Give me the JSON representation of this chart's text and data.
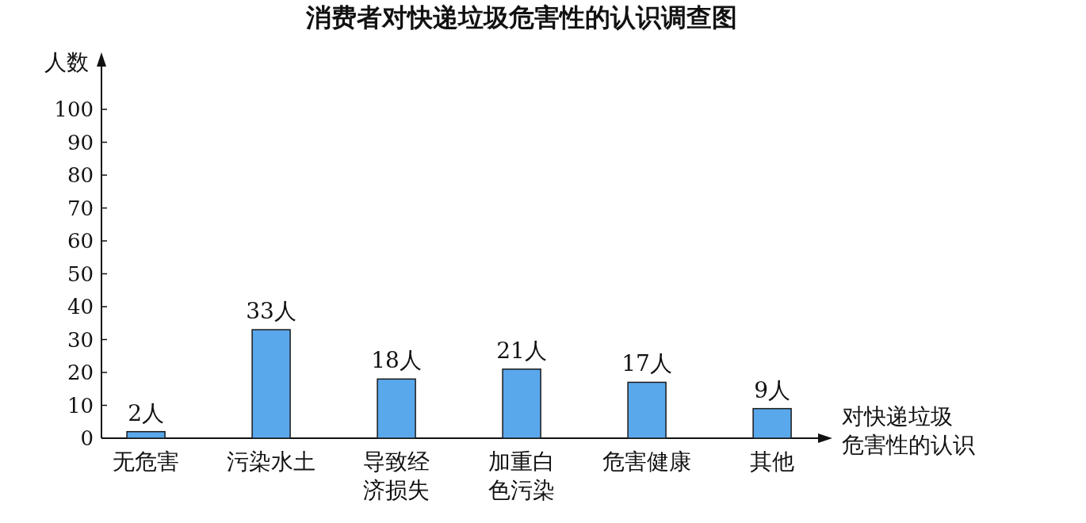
{
  "chart_data": {
    "type": "bar",
    "title": "消费者对快递垃圾危害性的认识调查图",
    "ylabel": "人数",
    "xlabel": "对快递垃圾危害性的认识",
    "categories": [
      "无危害",
      "污染水土",
      "导致经济损失",
      "加重白色污染",
      "危害健康",
      "其他"
    ],
    "values": [
      2,
      33,
      18,
      21,
      17,
      9
    ],
    "value_labels": [
      "2人",
      "33人",
      "18人",
      "21人",
      "17人",
      "9人"
    ],
    "color": "#5aa8ec",
    "ylim": [
      0,
      100
    ],
    "yticks": [
      0,
      10,
      20,
      30,
      40,
      50,
      60,
      70,
      80,
      90,
      100
    ],
    "grid": false
  }
}
